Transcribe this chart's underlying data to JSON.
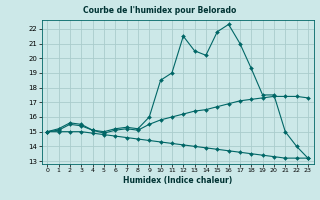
{
  "title": "Courbe de l'humidex pour Belorado",
  "xlabel": "Humidex (Indice chaleur)",
  "background_color": "#cce8e8",
  "grid_color": "#aacccc",
  "line_color": "#006666",
  "xlim": [
    -0.5,
    23.5
  ],
  "ylim": [
    12.8,
    22.6
  ],
  "yticks": [
    13,
    14,
    15,
    16,
    17,
    18,
    19,
    20,
    21,
    22
  ],
  "xticks": [
    0,
    1,
    2,
    3,
    4,
    5,
    6,
    7,
    8,
    9,
    10,
    11,
    12,
    13,
    14,
    15,
    16,
    17,
    18,
    19,
    20,
    21,
    22,
    23
  ],
  "line1_x": [
    0,
    1,
    2,
    3,
    4,
    5,
    6,
    7,
    8,
    9,
    10,
    11,
    12,
    13,
    14,
    15,
    16,
    17,
    18,
    19,
    20,
    21,
    22,
    23
  ],
  "line1_y": [
    15.0,
    15.2,
    15.6,
    15.5,
    15.1,
    15.0,
    15.2,
    15.3,
    15.2,
    16.0,
    18.5,
    19.0,
    21.5,
    20.5,
    20.2,
    21.8,
    22.3,
    21.0,
    19.3,
    17.5,
    17.5,
    15.0,
    14.0,
    13.2
  ],
  "line2_x": [
    0,
    1,
    2,
    3,
    4,
    5,
    6,
    7,
    8,
    9,
    10,
    11,
    12,
    13,
    14,
    15,
    16,
    17,
    18,
    19,
    20,
    21,
    22,
    23
  ],
  "line2_y": [
    15.0,
    15.1,
    15.5,
    15.4,
    15.1,
    14.9,
    15.1,
    15.2,
    15.1,
    15.5,
    15.8,
    16.0,
    16.2,
    16.4,
    16.5,
    16.7,
    16.9,
    17.1,
    17.2,
    17.3,
    17.4,
    17.4,
    17.4,
    17.3
  ],
  "line3_x": [
    0,
    1,
    2,
    3,
    4,
    5,
    6,
    7,
    8,
    9,
    10,
    11,
    12,
    13,
    14,
    15,
    16,
    17,
    18,
    19,
    20,
    21,
    22,
    23
  ],
  "line3_y": [
    15.0,
    15.0,
    15.0,
    15.0,
    14.9,
    14.8,
    14.7,
    14.6,
    14.5,
    14.4,
    14.3,
    14.2,
    14.1,
    14.0,
    13.9,
    13.8,
    13.7,
    13.6,
    13.5,
    13.4,
    13.3,
    13.2,
    13.2,
    13.2
  ]
}
